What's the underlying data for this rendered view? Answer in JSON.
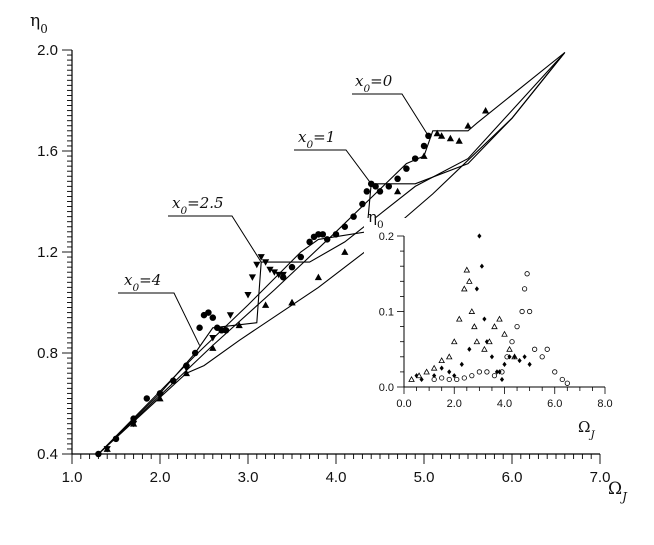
{
  "chart_data": [
    {
      "type": "line",
      "xlabel": "Ω_J",
      "ylabel": "η_0",
      "xlim": [
        1.0,
        7.0
      ],
      "ylim": [
        0.4,
        2.0
      ],
      "x_ticks": [
        "1.0",
        "2.0",
        "3.0",
        "4.0",
        "5.0",
        "6.0",
        "7.0"
      ],
      "y_ticks": [
        "0.4",
        "0.8",
        "1.2",
        "1.6",
        "2.0"
      ],
      "x_tick_values": [
        1.0,
        2.0,
        3.0,
        4.0,
        5.0,
        6.0,
        7.0
      ],
      "y_tick_values": [
        0.4,
        0.8,
        1.2,
        1.6,
        2.0
      ],
      "annotations": [
        {
          "text": "x₀=0",
          "target": [
            5.05,
            1.66
          ]
        },
        {
          "text": "x₀=1",
          "target": [
            4.4,
            1.47
          ]
        },
        {
          "text": "x₀=2.5",
          "target": [
            3.15,
            1.16
          ]
        },
        {
          "text": "x₀=4",
          "target": [
            2.45,
            0.83
          ]
        }
      ],
      "lines": [
        {
          "x": [
            1.3,
            2.3,
            2.5,
            2.9,
            3.8,
            4.4,
            5.1,
            5.4,
            6.0,
            6.6
          ],
          "y": [
            0.4,
            0.72,
            0.75,
            0.85,
            1.06,
            1.22,
            1.43,
            1.53,
            1.73,
            1.99
          ]
        },
        {
          "x": [
            1.3,
            2.0,
            2.4,
            2.6,
            3.1,
            3.15,
            3.7,
            4.1,
            4.9,
            5.5,
            6.6
          ],
          "y": [
            0.4,
            0.64,
            0.8,
            0.9,
            0.92,
            1.16,
            1.16,
            1.24,
            1.46,
            1.57,
            1.99
          ]
        },
        {
          "x": [
            1.3,
            2.4,
            3.0,
            3.6,
            3.8,
            4.35,
            4.4,
            4.9,
            5.5,
            6.0,
            6.6
          ],
          "y": [
            0.4,
            0.79,
            0.99,
            1.2,
            1.25,
            1.28,
            1.47,
            1.47,
            1.55,
            1.73,
            1.99
          ]
        },
        {
          "x": [
            1.3,
            2.6,
            3.3,
            4.0,
            4.8,
            5.0,
            5.1,
            5.5,
            5.6,
            6.6
          ],
          "y": [
            0.4,
            0.83,
            1.05,
            1.28,
            1.55,
            1.58,
            1.68,
            1.68,
            1.71,
            1.99
          ]
        }
      ],
      "series": [
        {
          "marker": "circle-filled",
          "x": [
            1.3,
            1.5,
            1.7,
            1.85,
            2.0,
            2.15,
            2.3,
            2.4,
            2.45,
            2.5,
            2.55,
            2.6,
            2.65,
            2.7,
            2.75
          ],
          "y": [
            0.4,
            0.46,
            0.54,
            0.62,
            0.64,
            0.69,
            0.75,
            0.8,
            0.9,
            0.95,
            0.96,
            0.94,
            0.9,
            0.89,
            0.89
          ]
        },
        {
          "marker": "triangle-down",
          "x": [
            1.4,
            1.7,
            2.0,
            2.3,
            2.6,
            2.8,
            3.0,
            3.05,
            3.1,
            3.15,
            3.2,
            3.25,
            3.3,
            3.35,
            3.4
          ],
          "y": [
            0.42,
            0.52,
            0.63,
            0.74,
            0.86,
            0.95,
            1.03,
            1.1,
            1.15,
            1.18,
            1.16,
            1.13,
            1.12,
            1.11,
            1.11
          ]
        },
        {
          "marker": "circle-filled",
          "x": [
            3.4,
            3.5,
            3.6,
            3.7,
            3.75,
            3.8,
            3.85,
            3.9,
            4.0,
            4.1,
            4.2,
            4.3,
            4.35,
            4.4,
            4.45,
            4.5,
            4.6,
            4.7,
            4.8,
            4.9,
            5.0,
            5.05
          ],
          "y": [
            1.1,
            1.14,
            1.18,
            1.24,
            1.26,
            1.27,
            1.27,
            1.25,
            1.27,
            1.3,
            1.34,
            1.39,
            1.44,
            1.47,
            1.46,
            1.44,
            1.46,
            1.49,
            1.53,
            1.57,
            1.62,
            1.66
          ]
        },
        {
          "marker": "triangle-up",
          "x": [
            3.5,
            3.8,
            4.1,
            4.4,
            4.7,
            5.0,
            5.15,
            5.2,
            5.3,
            5.4,
            5.5,
            5.7
          ],
          "y": [
            1.0,
            1.1,
            1.2,
            1.32,
            1.44,
            1.58,
            1.67,
            1.66,
            1.65,
            1.64,
            1.7,
            1.76
          ]
        },
        {
          "marker": "triangle-up",
          "x": [
            1.4,
            1.7,
            2.0,
            2.3,
            2.6,
            2.9,
            3.2,
            3.5
          ],
          "y": [
            0.42,
            0.52,
            0.62,
            0.72,
            0.82,
            0.91,
            0.99,
            1.0
          ]
        }
      ]
    },
    {
      "type": "scatter",
      "xlabel": "Ω_J",
      "ylabel": "η_0",
      "xlim": [
        0.0,
        8.0
      ],
      "ylim": [
        0.0,
        0.2
      ],
      "x_ticks": [
        "0.0",
        "2.0",
        "4.0",
        "6.0",
        "8.0"
      ],
      "y_ticks": [
        "0.0",
        "0.1",
        "0.2"
      ],
      "x_tick_values": [
        0.0,
        2.0,
        4.0,
        6.0,
        8.0
      ],
      "y_tick_values": [
        0.0,
        0.1,
        0.2
      ],
      "series": [
        {
          "marker": "diamond-filled",
          "x": [
            0.3,
            0.5,
            0.7,
            0.9,
            1.2,
            1.5,
            1.8,
            2.0,
            2.3,
            2.6,
            2.8,
            2.9,
            3.0,
            3.1,
            3.2,
            3.3,
            3.5,
            3.7,
            3.9
          ],
          "y": [
            0.01,
            0.015,
            0.01,
            0.02,
            0.015,
            0.025,
            0.02,
            0.015,
            0.03,
            0.05,
            0.08,
            0.13,
            0.2,
            0.16,
            0.09,
            0.06,
            0.04,
            0.02,
            0.01
          ]
        },
        {
          "marker": "triangle-open",
          "x": [
            0.3,
            0.6,
            0.9,
            1.2,
            1.5,
            1.8,
            2.0,
            2.2,
            2.4,
            2.5,
            2.6,
            2.7,
            2.8,
            2.9,
            3.2,
            3.4,
            3.6,
            3.8,
            4.0,
            4.2,
            4.4
          ],
          "y": [
            0.01,
            0.015,
            0.02,
            0.025,
            0.035,
            0.04,
            0.06,
            0.09,
            0.13,
            0.155,
            0.14,
            0.1,
            0.08,
            0.06,
            0.05,
            0.06,
            0.08,
            0.09,
            0.07,
            0.05,
            0.04
          ]
        },
        {
          "marker": "circle-open",
          "x": [
            1.2,
            1.5,
            1.8,
            2.1,
            2.4,
            2.7,
            3.0,
            3.3,
            3.6,
            3.9,
            4.1,
            4.3,
            4.5,
            4.7,
            4.8,
            4.9,
            5.0,
            5.2,
            5.5,
            5.7,
            6.0,
            6.3,
            6.5
          ],
          "y": [
            0.01,
            0.012,
            0.01,
            0.01,
            0.012,
            0.015,
            0.02,
            0.02,
            0.015,
            0.02,
            0.04,
            0.06,
            0.08,
            0.1,
            0.13,
            0.15,
            0.1,
            0.05,
            0.04,
            0.05,
            0.02,
            0.01,
            0.005
          ]
        },
        {
          "marker": "diamond-filled",
          "x": [
            3.8,
            4.0,
            4.2,
            4.4,
            4.6,
            4.8,
            5.0
          ],
          "y": [
            0.02,
            0.03,
            0.04,
            0.04,
            0.035,
            0.04,
            0.03
          ]
        }
      ]
    }
  ]
}
